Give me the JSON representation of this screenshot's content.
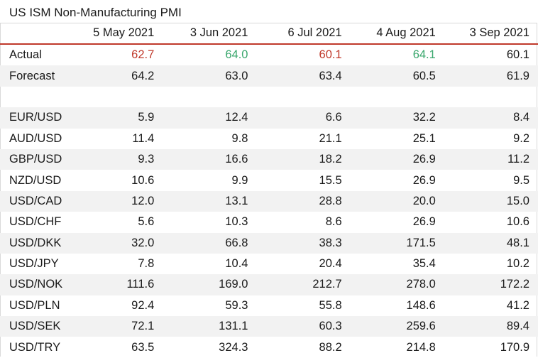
{
  "title": "US ISM Non-Manufacturing PMI",
  "colors": {
    "up": "#3aa76d",
    "down": "#c0392b",
    "accent_line": "#c0392b"
  },
  "chart_data": {
    "type": "table",
    "title": "US ISM Non-Manufacturing PMI",
    "columns": [
      "",
      "5 May 2021",
      "3 Jun 2021",
      "6 Jul 2021",
      "4 Aug 2021",
      "3 Sep 2021"
    ],
    "rows": [
      {
        "label": "Actual",
        "values": [
          "62.7",
          "64.0",
          "60.1",
          "64.1",
          "60.1"
        ],
        "colors": [
          "red",
          "green",
          "red",
          "green",
          ""
        ]
      },
      {
        "label": "Forecast",
        "values": [
          "64.2",
          "63.0",
          "63.4",
          "60.5",
          "61.9"
        ]
      },
      {
        "label": "",
        "values": [
          "",
          "",
          "",
          "",
          ""
        ]
      },
      {
        "label": "EUR/USD",
        "values": [
          "5.9",
          "12.4",
          "6.6",
          "32.2",
          "8.4"
        ]
      },
      {
        "label": "AUD/USD",
        "values": [
          "11.4",
          "9.8",
          "21.1",
          "25.1",
          "9.2"
        ]
      },
      {
        "label": "GBP/USD",
        "values": [
          "9.3",
          "16.6",
          "18.2",
          "26.9",
          "11.2"
        ]
      },
      {
        "label": "NZD/USD",
        "values": [
          "10.6",
          "9.9",
          "15.5",
          "26.9",
          "9.5"
        ]
      },
      {
        "label": "USD/CAD",
        "values": [
          "12.0",
          "13.1",
          "28.8",
          "20.0",
          "15.0"
        ]
      },
      {
        "label": "USD/CHF",
        "values": [
          "5.6",
          "10.3",
          "8.6",
          "26.9",
          "10.6"
        ]
      },
      {
        "label": "USD/DKK",
        "values": [
          "32.0",
          "66.8",
          "38.3",
          "171.5",
          "48.1"
        ]
      },
      {
        "label": "USD/JPY",
        "values": [
          "7.8",
          "10.4",
          "20.4",
          "35.4",
          "10.2"
        ]
      },
      {
        "label": "USD/NOK",
        "values": [
          "111.6",
          "169.0",
          "212.7",
          "278.0",
          "172.2"
        ]
      },
      {
        "label": "USD/PLN",
        "values": [
          "92.4",
          "59.3",
          "55.8",
          "148.6",
          "41.2"
        ]
      },
      {
        "label": "USD/SEK",
        "values": [
          "72.1",
          "131.1",
          "60.3",
          "259.6",
          "89.4"
        ]
      },
      {
        "label": "USD/TRY",
        "values": [
          "63.5",
          "324.3",
          "88.2",
          "214.8",
          "170.9"
        ]
      }
    ]
  }
}
